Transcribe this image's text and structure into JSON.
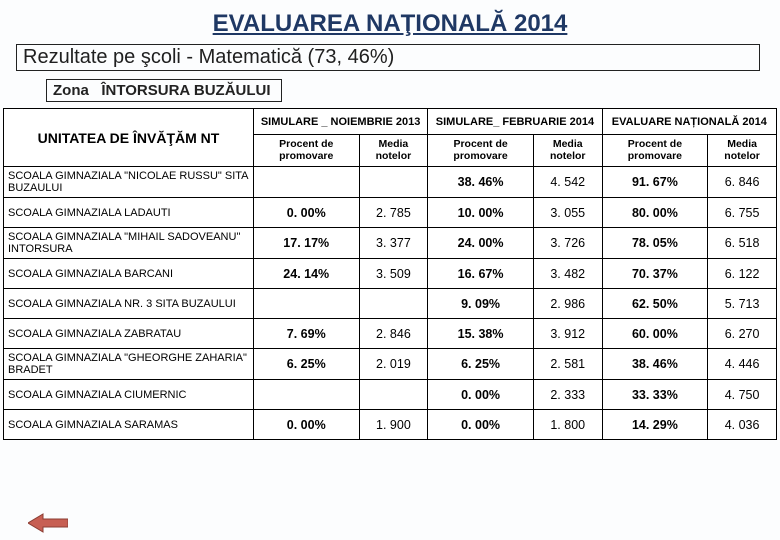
{
  "title": "EVALUAREA NAŢIONALĂ 2014",
  "subtitle": "Rezultate pe şcoli -  Matematică (73, 46%)",
  "zone_label": "Zona",
  "zone_value": "ÎNTORSURA BUZĂULUI",
  "table": {
    "unit_header": "UNITATEA DE ÎNVĂŢĂM NT",
    "group_headers": [
      "SIMULARE _ NOIEMBRIE 2013",
      "SIMULARE_ FEBRUARIE 2014",
      "EVALUARE NAȚIONALĂ 2014"
    ],
    "sub_headers_pair": [
      "Procent de promovare",
      "Media notelor"
    ],
    "rows": [
      {
        "school": "SCOALA GIMNAZIALA \"NICOLAE RUSSU\" SITA BUZAULUI",
        "c": [
          "",
          "",
          "38. 46%",
          "4. 542",
          "91. 67%",
          "6. 846"
        ]
      },
      {
        "school": "SCOALA GIMNAZIALA LADAUTI",
        "c": [
          "0. 00%",
          "2. 785",
          "10. 00%",
          "3. 055",
          "80. 00%",
          "6. 755"
        ]
      },
      {
        "school": "SCOALA GIMNAZIALA \"MIHAIL SADOVEANU\" INTORSURA",
        "c": [
          "17. 17%",
          "3. 377",
          "24. 00%",
          "3. 726",
          "78. 05%",
          "6. 518"
        ]
      },
      {
        "school": "SCOALA GIMNAZIALA BARCANI",
        "c": [
          "24. 14%",
          "3. 509",
          "16. 67%",
          "3. 482",
          "70. 37%",
          "6. 122"
        ]
      },
      {
        "school": "SCOALA GIMNAZIALA NR. 3 SITA BUZAULUI",
        "c": [
          "",
          "",
          "9. 09%",
          "2. 986",
          "62. 50%",
          "5. 713"
        ]
      },
      {
        "school": "SCOALA GIMNAZIALA ZABRATAU",
        "c": [
          "7. 69%",
          "2. 846",
          "15. 38%",
          "3. 912",
          "60. 00%",
          "6. 270"
        ]
      },
      {
        "school": "SCOALA GIMNAZIALA \"GHEORGHE ZAHARIA\" BRADET",
        "c": [
          "6. 25%",
          "2. 019",
          "6. 25%",
          "2. 581",
          "38. 46%",
          "4. 446"
        ]
      },
      {
        "school": "SCOALA GIMNAZIALA CIUMERNIC",
        "c": [
          "",
          "",
          "0. 00%",
          "2. 333",
          "33. 33%",
          "4. 750"
        ]
      },
      {
        "school": "SCOALA GIMNAZIALA SARAMAS",
        "c": [
          "0. 00%",
          "1. 900",
          "0. 00%",
          "1. 800",
          "14. 29%",
          "4. 036"
        ]
      }
    ]
  },
  "style": {
    "title_color": "#1f3864",
    "arrow_fill": "#c75f53",
    "arrow_stroke": "#8b3d33",
    "background": "#fcfdfe",
    "border_color": "#000000",
    "subtitle_font_size": 20,
    "title_font_size": 24,
    "table_font_size": 12
  }
}
